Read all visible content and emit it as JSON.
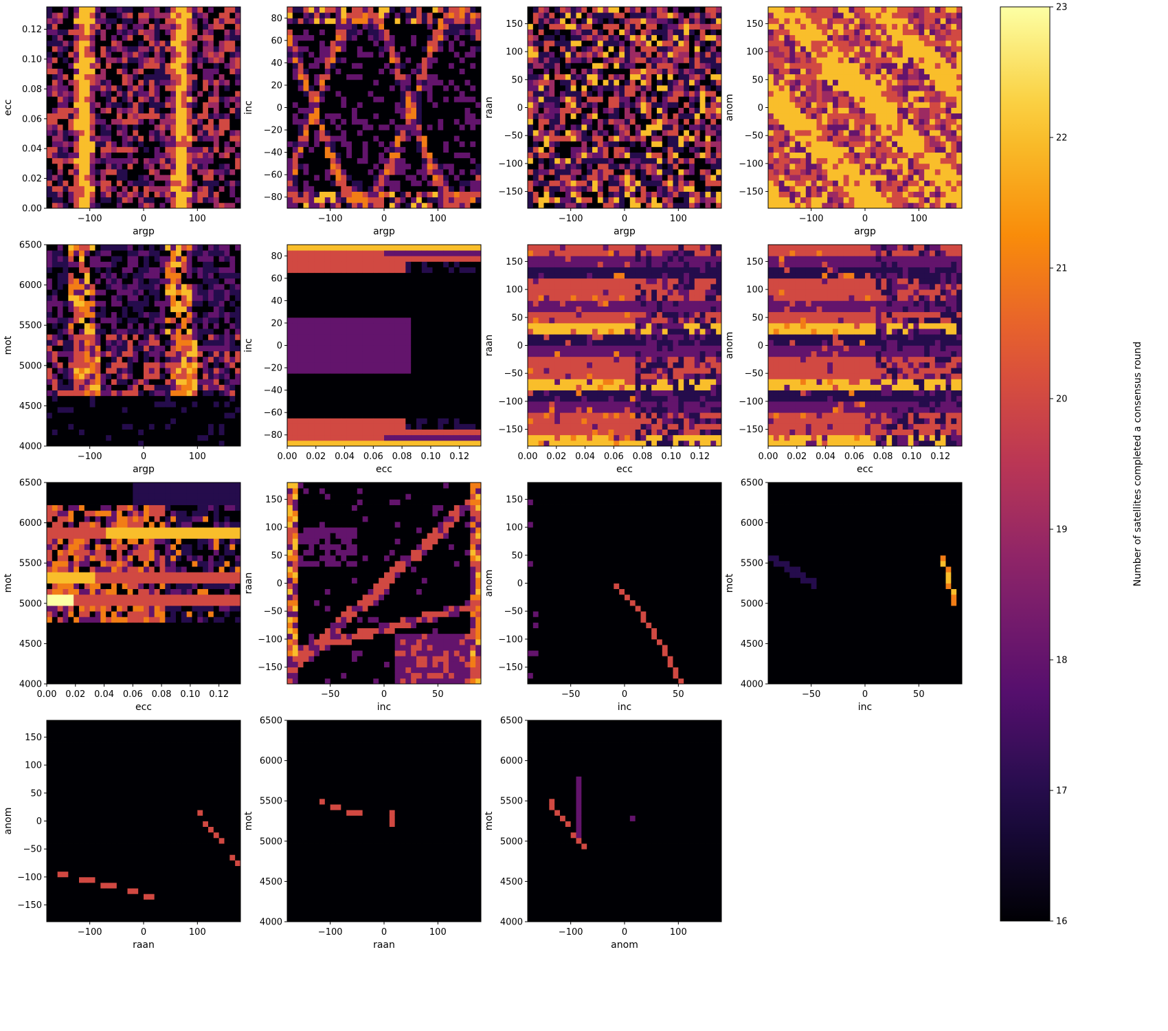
{
  "chart_data": {
    "type": "heatmap",
    "colormap": "inferno",
    "colorbar": {
      "label": "Number of satellites completed a consensus round",
      "min": 16,
      "max": 23,
      "ticks": [
        "16",
        "17",
        "18",
        "19",
        "20",
        "21",
        "22",
        "23"
      ]
    },
    "axes": {
      "argp": {
        "range": [
          -180,
          180
        ],
        "ticks": [
          "-100",
          "0",
          "100"
        ],
        "values": [
          -100,
          0,
          100
        ]
      },
      "ecc": {
        "range": [
          0,
          0.135
        ],
        "ticks": [
          "0.00",
          "0.02",
          "0.04",
          "0.06",
          "0.08",
          "0.10",
          "0.12"
        ],
        "values": [
          0,
          0.02,
          0.04,
          0.06,
          0.08,
          0.1,
          0.12
        ]
      },
      "inc": {
        "range": [
          -90,
          90
        ],
        "ticks": [
          "-50",
          "0",
          "50"
        ],
        "values": [
          -50,
          0,
          50
        ]
      },
      "inc_y": {
        "range": [
          -90,
          90
        ],
        "ticks": [
          "-80",
          "-60",
          "-40",
          "-20",
          "0",
          "20",
          "40",
          "60",
          "80"
        ],
        "values": [
          -80,
          -60,
          -40,
          -20,
          0,
          20,
          40,
          60,
          80
        ]
      },
      "raan": {
        "range": [
          -180,
          180
        ],
        "ticks": [
          "-150",
          "-100",
          "-50",
          "0",
          "50",
          "100",
          "150"
        ],
        "values": [
          -150,
          -100,
          -50,
          0,
          50,
          100,
          150
        ]
      },
      "raan_x": {
        "range": [
          -180,
          180
        ],
        "ticks": [
          "-100",
          "0",
          "100"
        ],
        "values": [
          -100,
          0,
          100
        ]
      },
      "anom": {
        "range": [
          -180,
          180
        ],
        "ticks": [
          "-150",
          "-100",
          "-50",
          "0",
          "50",
          "100",
          "150"
        ],
        "values": [
          -150,
          -100,
          -50,
          0,
          50,
          100,
          150
        ]
      },
      "anom_x": {
        "range": [
          -180,
          180
        ],
        "ticks": [
          "-100",
          "0",
          "100"
        ],
        "values": [
          -100,
          0,
          100
        ]
      },
      "ecc_y": {
        "range": [
          0,
          0.135
        ],
        "ticks": [
          "0.00",
          "0.02",
          "0.04",
          "0.06",
          "0.08",
          "0.10",
          "0.12"
        ],
        "values": [
          0,
          0.02,
          0.04,
          0.06,
          0.08,
          0.1,
          0.12
        ]
      },
      "mot": {
        "range": [
          4000,
          6500
        ],
        "ticks": [
          "4000",
          "4500",
          "5000",
          "5500",
          "6000",
          "6500"
        ],
        "values": [
          4000,
          4500,
          5000,
          5500,
          6000,
          6500
        ]
      }
    },
    "panels": [
      {
        "id": "ecc-vs-argp",
        "x": "argp",
        "y": "ecc",
        "xlabel": "argp",
        "ylabel": "ecc",
        "pattern": "argp_ecc"
      },
      {
        "id": "inc-vs-argp",
        "x": "argp",
        "y": "inc",
        "xlabel": "argp",
        "ylabel": "inc",
        "pattern": "argp_inc"
      },
      {
        "id": "raan-vs-argp",
        "x": "argp",
        "y": "raan",
        "xlabel": "argp",
        "ylabel": "raan",
        "pattern": "noise"
      },
      {
        "id": "anom-vs-argp",
        "x": "argp",
        "y": "anom",
        "xlabel": "argp",
        "ylabel": "anom",
        "pattern": "diag"
      },
      {
        "id": "mot-vs-argp",
        "x": "argp",
        "y": "mot",
        "xlabel": "argp",
        "ylabel": "mot",
        "pattern": "argp_mot"
      },
      {
        "id": "inc-vs-ecc",
        "x": "ecc",
        "y": "inc",
        "xlabel": "ecc",
        "ylabel": "inc",
        "pattern": "ecc_inc"
      },
      {
        "id": "raan-vs-ecc",
        "x": "ecc",
        "y": "raan",
        "xlabel": "ecc",
        "ylabel": "raan",
        "pattern": "bands"
      },
      {
        "id": "anom-vs-ecc",
        "x": "ecc",
        "y": "anom",
        "xlabel": "ecc",
        "ylabel": "anom",
        "pattern": "bands"
      },
      {
        "id": "mot-vs-ecc",
        "x": "ecc",
        "y": "mot",
        "xlabel": "ecc",
        "ylabel": "mot",
        "pattern": "ecc_mot"
      },
      {
        "id": "raan-vs-inc",
        "x": "inc",
        "y": "raan",
        "xlabel": "inc",
        "ylabel": "raan",
        "pattern": "inc_raan"
      },
      {
        "id": "anom-vs-inc",
        "x": "inc",
        "y": "anom",
        "xlabel": "inc",
        "ylabel": "anom",
        "pattern": "inc_anom"
      },
      {
        "id": "mot-vs-inc",
        "x": "inc",
        "y": "mot",
        "xlabel": "inc",
        "ylabel": "mot",
        "pattern": "inc_mot"
      },
      {
        "id": "anom-vs-raan",
        "x": "raan",
        "y": "anom",
        "xlabel": "raan",
        "ylabel": "anom",
        "pattern": "raan_anom"
      },
      {
        "id": "mot-vs-raan",
        "x": "raan",
        "y": "mot",
        "xlabel": "raan",
        "ylabel": "mot",
        "pattern": "raan_mot"
      },
      {
        "id": "mot-vs-anom",
        "x": "anom",
        "y": "mot",
        "xlabel": "anom",
        "ylabel": "mot",
        "pattern": "anom_mot"
      }
    ]
  }
}
